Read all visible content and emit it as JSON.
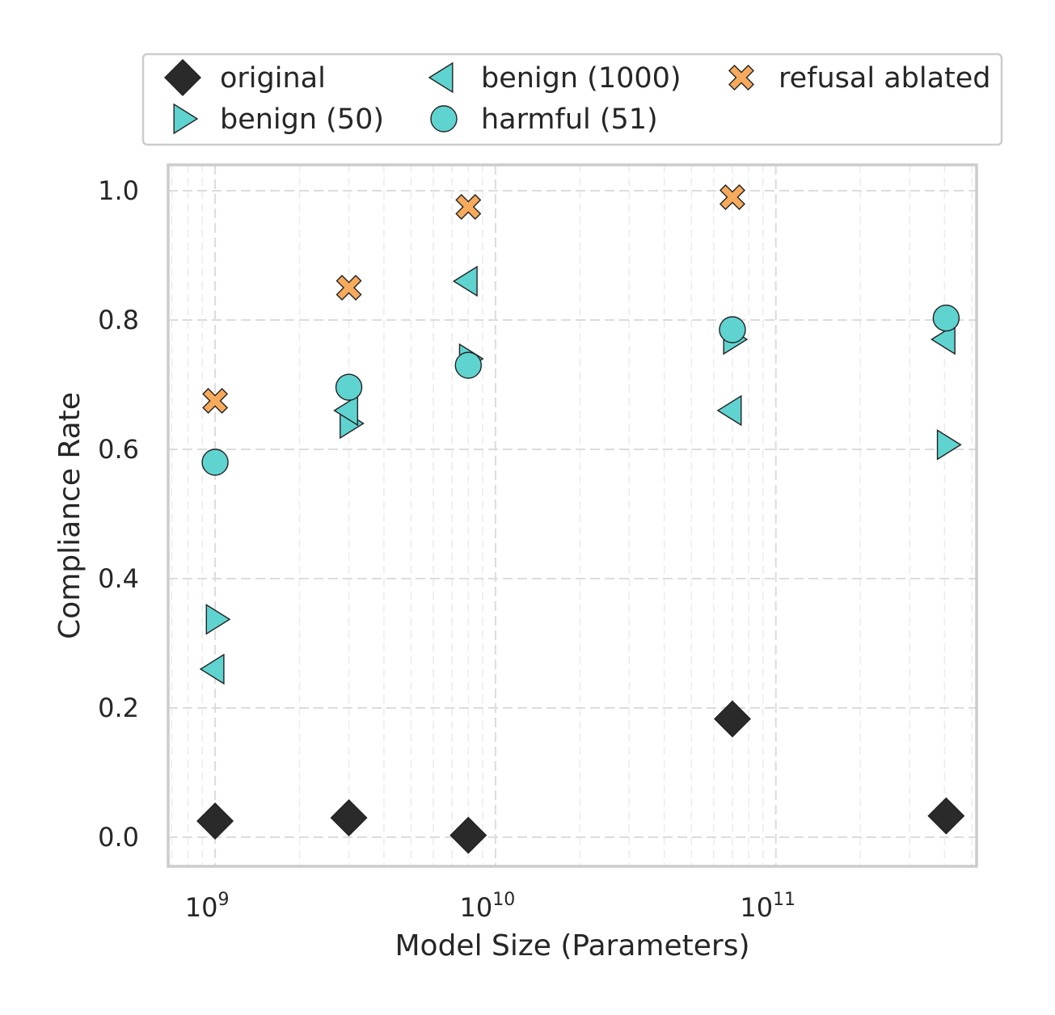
{
  "chart_data": {
    "type": "scatter",
    "title": "",
    "xlabel": "Model Size (Parameters)",
    "ylabel": "Compliance Rate",
    "xscale": "log",
    "xlim": [
      680000000.0,
      520000000000.0
    ],
    "ylim": [
      -0.045,
      1.04
    ],
    "x_ticks": [
      {
        "value": 1000000000.0,
        "base": "10",
        "exp": "9"
      },
      {
        "value": 10000000000.0,
        "base": "10",
        "exp": "10"
      },
      {
        "value": 100000000000.0,
        "base": "10",
        "exp": "11"
      }
    ],
    "y_ticks": [
      {
        "value": 0.0,
        "label": "0.0"
      },
      {
        "value": 0.2,
        "label": "0.2"
      },
      {
        "value": 0.4,
        "label": "0.4"
      },
      {
        "value": 0.6,
        "label": "0.6"
      },
      {
        "value": 0.8,
        "label": "0.8"
      },
      {
        "value": 1.0,
        "label": "1.0"
      }
    ],
    "grid": true,
    "legend_position": "top",
    "series": [
      {
        "name": "original",
        "marker": "diamond",
        "color": "#2a2a2a",
        "x": [
          1000000000.0,
          3000000000.0,
          8000000000.0,
          70000000000.0,
          405000000000.0
        ],
        "y": [
          0.025,
          0.03,
          0.003,
          0.183,
          0.033
        ]
      },
      {
        "name": "benign (50)",
        "marker": "triangle-right",
        "color": "#5fd3d0",
        "x": [
          1000000000.0,
          3000000000.0,
          8000000000.0,
          70000000000.0,
          405000000000.0
        ],
        "y": [
          0.337,
          0.64,
          0.74,
          0.77,
          0.607
        ]
      },
      {
        "name": "benign (1000)",
        "marker": "triangle-left",
        "color": "#5fd3d0",
        "x": [
          1000000000.0,
          3000000000.0,
          8000000000.0,
          70000000000.0,
          405000000000.0
        ],
        "y": [
          0.26,
          0.66,
          0.86,
          0.66,
          0.77
        ]
      },
      {
        "name": "harmful (51)",
        "marker": "circle",
        "color": "#5fd3d0",
        "x": [
          1000000000.0,
          3000000000.0,
          8000000000.0,
          70000000000.0,
          405000000000.0
        ],
        "y": [
          0.58,
          0.696,
          0.73,
          0.785,
          0.803
        ]
      },
      {
        "name": "refusal ablated",
        "marker": "x",
        "color": "#f7aa5c",
        "x": [
          1000000000.0,
          3000000000.0,
          8000000000.0,
          70000000000.0
        ],
        "y": [
          0.675,
          0.85,
          0.975,
          0.99
        ]
      }
    ]
  }
}
